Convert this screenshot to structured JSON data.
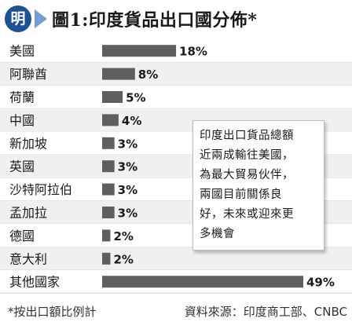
{
  "header": {
    "logo_char": "明",
    "title": "圖1:印度貨品出口國分佈*"
  },
  "chart_data": {
    "type": "bar",
    "orientation": "horizontal",
    "title": "圖1:印度貨品出口國分佈*",
    "categories": [
      "美國",
      "阿聯酋",
      "荷蘭",
      "中國",
      "新加坡",
      "英國",
      "沙特阿拉伯",
      "孟加拉",
      "德國",
      "意大利",
      "其他國家"
    ],
    "values": [
      18,
      8,
      5,
      4,
      3,
      3,
      3,
      3,
      2,
      2,
      49
    ],
    "value_labels": [
      "18%",
      "8%",
      "5%",
      "4%",
      "3%",
      "3%",
      "3%",
      "3%",
      "2%",
      "2%",
      "49%"
    ],
    "unit": "%",
    "xlim": [
      0,
      49
    ],
    "row_shading": [
      "#ffffff",
      "#f0f0f0"
    ],
    "bar_color": "#5f5f5f"
  },
  "callout": {
    "lines": [
      "印度出口貨品總額",
      "近兩成輸往美國，",
      "為最大貿易伙伴，",
      "兩國目前關係良",
      "好，未來或迎來更",
      "多機會"
    ]
  },
  "footer": {
    "note": "*按出口額比例計",
    "source": "資料來源：印度商工部、CNBC"
  }
}
